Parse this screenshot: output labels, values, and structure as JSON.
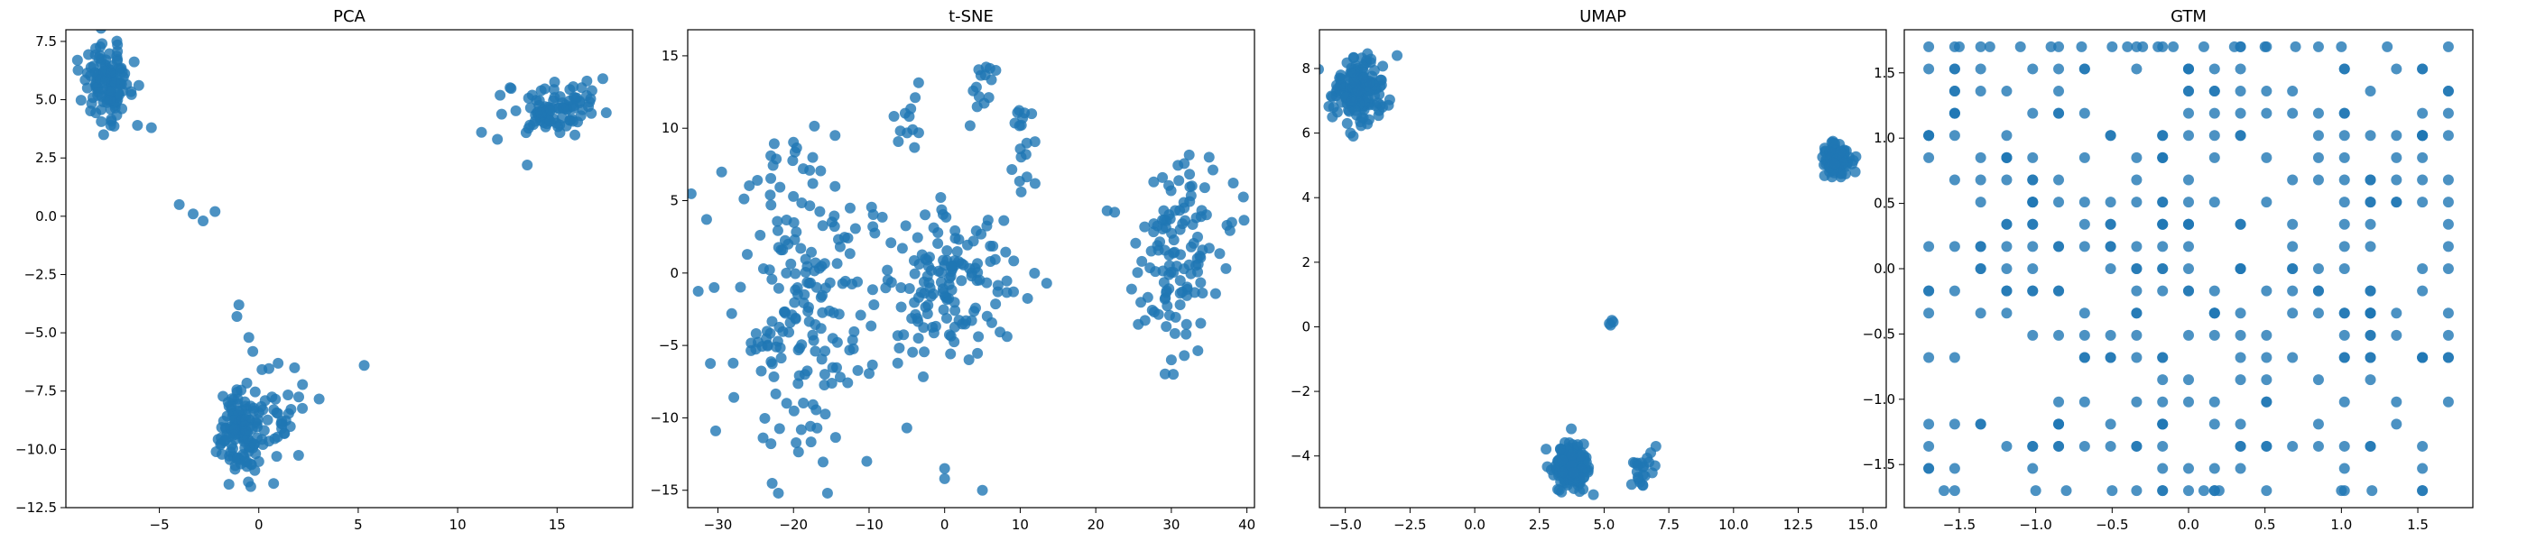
{
  "colors": {
    "point": "#1f77b4",
    "frame": "#000000",
    "background": "#ffffff"
  },
  "chart_data": [
    {
      "type": "scatter",
      "title": "PCA",
      "xlabel": "",
      "ylabel": "",
      "xlim": [
        -9.7,
        18.8
      ],
      "ylim": [
        -12.5,
        8.0
      ],
      "xticks": [
        -5,
        0,
        5,
        10,
        15
      ],
      "yticks": [
        -12.5,
        -10.0,
        -7.5,
        -5.0,
        -2.5,
        0.0,
        2.5,
        5.0,
        7.5
      ],
      "xtick_labels": [
        "−5",
        "0",
        "5",
        "10",
        "15"
      ],
      "ytick_labels": [
        "−12.5",
        "−10.0",
        "−7.5",
        "−5.0",
        "−2.5",
        "0.0",
        "2.5",
        "5.0",
        "7.5"
      ],
      "grid": false,
      "clusters": [
        {
          "center": [
            -7.6,
            5.8
          ],
          "spread": [
            0.6,
            0.75
          ],
          "n": 120
        },
        {
          "center": [
            15.0,
            4.6
          ],
          "spread": [
            1.2,
            0.6
          ],
          "n": 90
        },
        {
          "center": [
            -1.0,
            -9.2
          ],
          "spread": [
            0.5,
            0.9
          ],
          "n": 120
        },
        {
          "center": [
            0.8,
            -8.5
          ],
          "spread": [
            0.7,
            1.0
          ],
          "n": 40
        }
      ],
      "points": [
        [
          -4.0,
          0.5
        ],
        [
          -3.3,
          0.1
        ],
        [
          -2.8,
          -0.2
        ],
        [
          -2.2,
          0.2
        ],
        [
          5.3,
          -6.4
        ],
        [
          -1.0,
          -3.8
        ],
        [
          -1.1,
          -4.3
        ],
        [
          -0.5,
          -5.2
        ],
        [
          -0.3,
          -5.8
        ],
        [
          11.2,
          3.6
        ],
        [
          12.0,
          3.3
        ],
        [
          13.5,
          2.2
        ],
        [
          16.5,
          5.8
        ],
        [
          17.3,
          5.9
        ],
        [
          -8.2,
          7.2
        ],
        [
          -6.1,
          3.9
        ],
        [
          -5.4,
          3.8
        ],
        [
          -7.8,
          3.5
        ],
        [
          1.8,
          -6.5
        ],
        [
          0.9,
          -10.3
        ],
        [
          -1.5,
          -11.5
        ]
      ]
    },
    {
      "type": "scatter",
      "title": "t-SNE",
      "xlabel": "",
      "ylabel": "",
      "xlim": [
        -34,
        41
      ],
      "ylim": [
        -16.2,
        16.8
      ],
      "xticks": [
        -30,
        -20,
        -10,
        0,
        10,
        20,
        30,
        40
      ],
      "yticks": [
        -15,
        -10,
        -5,
        0,
        5,
        10,
        15
      ],
      "xtick_labels": [
        "−30",
        "−20",
        "−10",
        "0",
        "10",
        "20",
        "30",
        "40"
      ],
      "ytick_labels": [
        "−15",
        "−10",
        "−5",
        "0",
        "5",
        "10",
        "15"
      ],
      "grid": false,
      "clusters": [
        {
          "center": [
            -18.0,
            -1.5
          ],
          "spread": [
            5.5,
            5.0
          ],
          "n": 190
        },
        {
          "center": [
            1.0,
            -1.0
          ],
          "spread": [
            4.5,
            3.2
          ],
          "n": 140
        },
        {
          "center": [
            31.0,
            1.5
          ],
          "spread": [
            3.0,
            3.3
          ],
          "n": 120
        },
        {
          "center": [
            -4.5,
            10.5
          ],
          "spread": [
            1.0,
            1.0
          ],
          "n": 12
        },
        {
          "center": [
            5.5,
            13.0
          ],
          "spread": [
            1.2,
            1.3
          ],
          "n": 14
        },
        {
          "center": [
            10.5,
            7.5
          ],
          "spread": [
            1.2,
            0.8
          ],
          "n": 10
        },
        {
          "center": [
            10.5,
            10.5
          ],
          "spread": [
            0.7,
            0.6
          ],
          "n": 8
        }
      ],
      "points": [
        [
          -31.5,
          3.7
        ],
        [
          -30.5,
          -1.0
        ],
        [
          -30.3,
          -10.9
        ],
        [
          -22.0,
          -15.2
        ],
        [
          -15.5,
          -15.2
        ],
        [
          -10.3,
          -13.0
        ],
        [
          -5.0,
          -10.7
        ],
        [
          0.0,
          -13.5
        ],
        [
          0.0,
          -14.2
        ],
        [
          5.0,
          -15.0
        ],
        [
          -14.5,
          9.5
        ],
        [
          -23.0,
          8.1
        ],
        [
          -9.5,
          3.2
        ],
        [
          21.5,
          4.3
        ],
        [
          22.5,
          4.2
        ],
        [
          30.0,
          -6.0
        ],
        [
          35.0,
          8.0
        ],
        [
          38.0,
          3.5
        ]
      ]
    },
    {
      "type": "scatter",
      "title": "UMAP",
      "xlabel": "",
      "ylabel": "",
      "xlim": [
        -6.0,
        15.9
      ],
      "ylim": [
        -5.6,
        9.2
      ],
      "xticks": [
        -5.0,
        -2.5,
        0.0,
        2.5,
        5.0,
        7.5,
        10.0,
        12.5,
        15.0
      ],
      "yticks": [
        -4,
        -2,
        0,
        2,
        4,
        6,
        8
      ],
      "xtick_labels": [
        "−5.0",
        "−2.5",
        "0.0",
        "2.5",
        "5.0",
        "7.5",
        "10.0",
        "12.5",
        "15.0"
      ],
      "ytick_labels": [
        "−4",
        "−2",
        "0",
        "2",
        "4",
        "6",
        "8"
      ],
      "grid": false,
      "clusters": [
        {
          "center": [
            -4.5,
            7.3
          ],
          "spread": [
            0.45,
            0.5
          ],
          "n": 160
        },
        {
          "center": [
            14.0,
            5.2
          ],
          "spread": [
            0.25,
            0.3
          ],
          "n": 90
        },
        {
          "center": [
            3.7,
            -4.3
          ],
          "spread": [
            0.35,
            0.35
          ],
          "n": 160
        },
        {
          "center": [
            6.5,
            -4.4
          ],
          "spread": [
            0.25,
            0.25
          ],
          "n": 20
        }
      ],
      "points": [
        [
          5.2,
          0.1
        ],
        [
          5.3,
          0.2
        ],
        [
          5.35,
          0.15
        ],
        [
          5.25,
          0.05
        ],
        [
          7.0,
          -3.7
        ],
        [
          6.8,
          -3.9
        ],
        [
          14.7,
          4.8
        ],
        [
          -3.0,
          8.4
        ],
        [
          -4.8,
          6.0
        ],
        [
          -5.5,
          6.5
        ]
      ]
    },
    {
      "type": "scatter",
      "title": "GTM",
      "xlabel": "",
      "ylabel": "",
      "xlim": [
        -1.86,
        1.86
      ],
      "ylim": [
        -1.83,
        1.83
      ],
      "xticks": [
        -1.5,
        -1.0,
        -0.5,
        0.0,
        0.5,
        1.0,
        1.5
      ],
      "yticks": [
        -1.5,
        -1.0,
        -0.5,
        0.0,
        0.5,
        1.0,
        1.5
      ],
      "xtick_labels": [
        "−1.5",
        "−1.0",
        "−0.5",
        "0.0",
        "0.5",
        "1.0",
        "1.5"
      ],
      "ytick_labels": [
        "−1.5",
        "−1.0",
        "−0.5",
        "0.0",
        "0.5",
        "1.0",
        "1.5"
      ],
      "grid": false,
      "grid_lattice": {
        "range": [
          -1.7,
          1.7
        ],
        "steps": 20,
        "n": 340
      },
      "points": [
        [
          -1.7,
          1.7
        ],
        [
          -1.5,
          1.7
        ],
        [
          -1.3,
          1.7
        ],
        [
          -1.1,
          1.7
        ],
        [
          -0.9,
          1.7
        ],
        [
          -0.7,
          1.7
        ],
        [
          -0.5,
          1.7
        ],
        [
          -0.4,
          1.7
        ],
        [
          -0.3,
          1.7
        ],
        [
          -0.2,
          1.7
        ],
        [
          -0.1,
          1.7
        ],
        [
          0.1,
          1.7
        ],
        [
          0.3,
          1.7
        ],
        [
          0.5,
          1.7
        ],
        [
          0.7,
          1.7
        ],
        [
          1.0,
          1.7
        ],
        [
          1.3,
          1.7
        ],
        [
          1.7,
          1.7
        ],
        [
          -1.6,
          -1.7
        ],
        [
          -1.0,
          -1.7
        ],
        [
          -0.8,
          -1.7
        ],
        [
          -0.5,
          -1.7
        ],
        [
          0.0,
          -1.7
        ],
        [
          0.1,
          -1.7
        ],
        [
          0.2,
          -1.7
        ],
        [
          1.0,
          -1.7
        ],
        [
          1.2,
          -1.7
        ]
      ]
    }
  ]
}
